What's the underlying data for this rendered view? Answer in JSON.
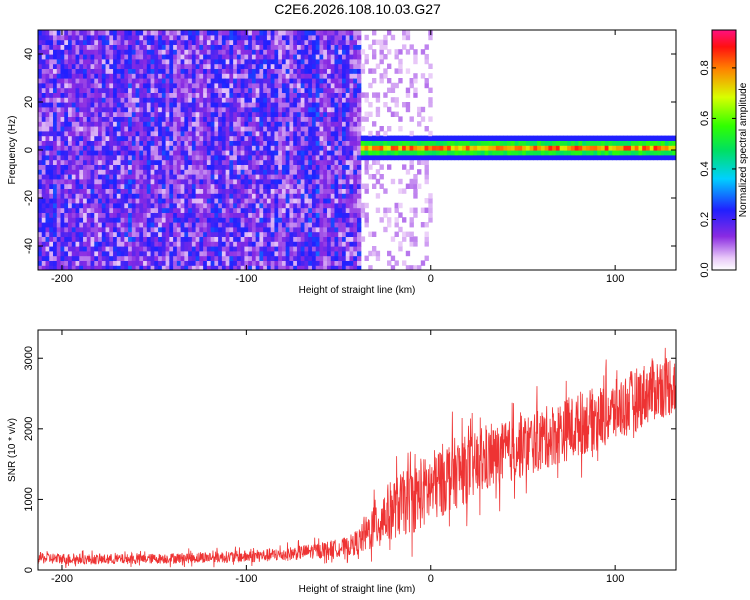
{
  "title": "C2E6.2026.108.10.03.G27",
  "colors": {
    "snr_line": "#ee3333",
    "frame": "#000000",
    "background": "#ffffff"
  },
  "chart_data": [
    {
      "type": "heatmap",
      "title": "C2E6.2026.108.10.03.G27",
      "xlabel": "Height of straight line (km)",
      "ylabel": "Frequency (Hz)",
      "xlim": [
        -213,
        133
      ],
      "ylim": [
        -50,
        50
      ],
      "x_ticks": [
        -200,
        -100,
        0,
        100
      ],
      "y_ticks": [
        -40,
        -20,
        0,
        20,
        40
      ],
      "colorbar": {
        "label": "Normalized spectral amplitude",
        "range": [
          0,
          0.95
        ],
        "ticks": [
          0.0,
          0.2,
          0.4,
          0.6,
          0.8
        ]
      },
      "features": {
        "noise_region_km": [
          -213,
          -38
        ],
        "sparse_region_km": [
          -38,
          0
        ],
        "signal_band_km": [
          -38,
          133
        ],
        "signal_band_center_hz": 1,
        "signal_band_halfwidth_hz": 3
      }
    },
    {
      "type": "line",
      "xlabel": "Height of straight line (km)",
      "ylabel": "SNR (10 * v/v)",
      "xlim": [
        -213,
        133
      ],
      "ylim": [
        0,
        3400
      ],
      "x_ticks": [
        -200,
        -100,
        0,
        100
      ],
      "y_ticks": [
        0,
        1000,
        2000,
        3000
      ],
      "series": [
        {
          "name": "SNR",
          "x": [
            -213,
            -200,
            -180,
            -150,
            -120,
            -100,
            -80,
            -60,
            -45,
            -38,
            -30,
            -20,
            -10,
            0,
            10,
            20,
            30,
            40,
            50,
            60,
            70,
            80,
            90,
            100,
            110,
            120,
            133
          ],
          "mean": [
            170,
            160,
            150,
            160,
            180,
            190,
            220,
            280,
            330,
            420,
            650,
            880,
            1000,
            1150,
            1350,
            1420,
            1550,
            1650,
            1750,
            1850,
            1950,
            2050,
            2150,
            2250,
            2400,
            2550,
            2650
          ],
          "spread": [
            100,
            100,
            90,
            90,
            100,
            110,
            120,
            140,
            170,
            250,
            450,
            550,
            600,
            650,
            650,
            600,
            580,
            560,
            560,
            560,
            560,
            560,
            560,
            560,
            560,
            560,
            560
          ]
        }
      ]
    }
  ]
}
